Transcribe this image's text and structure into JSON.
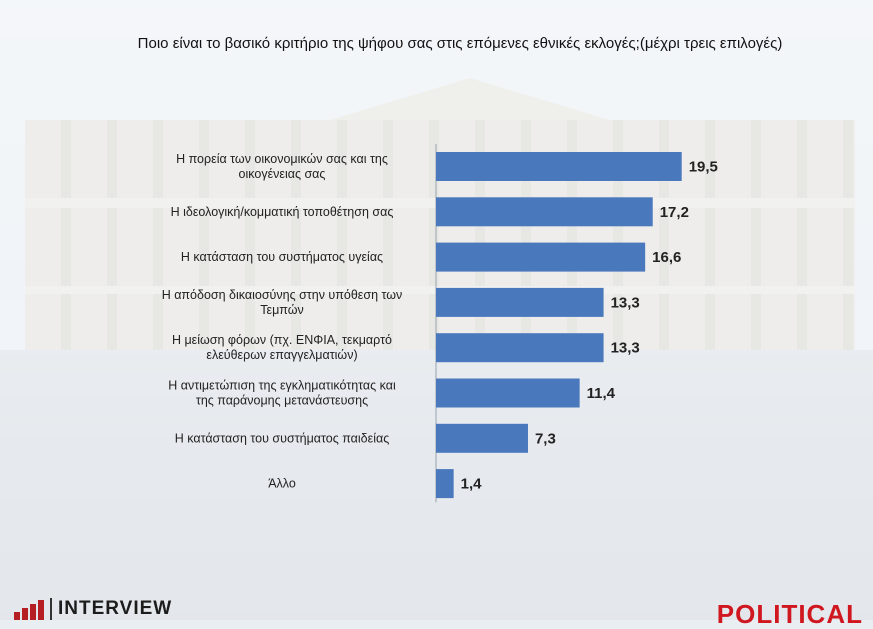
{
  "title": "Ποιο είναι το βασικό κριτήριο της ψήφου σας στις επόμενες εθνικές εκλογές;(μέχρι τρεις επιλογές)",
  "colors": {
    "bar": "#4a78bd",
    "logo_red": "#d0161e"
  },
  "logos": {
    "left": "INTERVIEW",
    "right": "POLITICAL"
  },
  "chart_data": {
    "type": "bar",
    "orientation": "horizontal",
    "title": "Ποιο είναι το βασικό κριτήριο της ψήφου σας στις επόμενες εθνικές εκλογές;(μέχρι τρεις επιλογές)",
    "categories": [
      [
        "Η πορεία των οικονομικών σας και της",
        "οικογένειας σας"
      ],
      [
        "Η ιδεολογική/κομματική τοποθέτηση σας"
      ],
      [
        "Η κατάσταση του συστήματος υγείας"
      ],
      [
        "Η απόδοση δικαιοσύνης στην υπόθεση των",
        "Τεμπών"
      ],
      [
        "Η μείωση φόρων (πχ. ΕΝΦΙΑ, τεκμαρτό",
        "ελεύθερων επαγγελματιών)"
      ],
      [
        "Η αντιμετώπιση της εγκληματικότητας και",
        "της παράνομης μετανάστευσης"
      ],
      [
        "Η κατάσταση του συστήματος παιδείας"
      ],
      [
        "Άλλο"
      ]
    ],
    "values": [
      19.5,
      17.2,
      16.6,
      13.3,
      13.3,
      11.4,
      7.3,
      1.4
    ],
    "value_labels": [
      "19,5",
      "17,2",
      "16,6",
      "13,3",
      "13,3",
      "11,4",
      "7,3",
      "1,4"
    ],
    "xlim": [
      0,
      20
    ],
    "grid": false,
    "legend": "none"
  }
}
